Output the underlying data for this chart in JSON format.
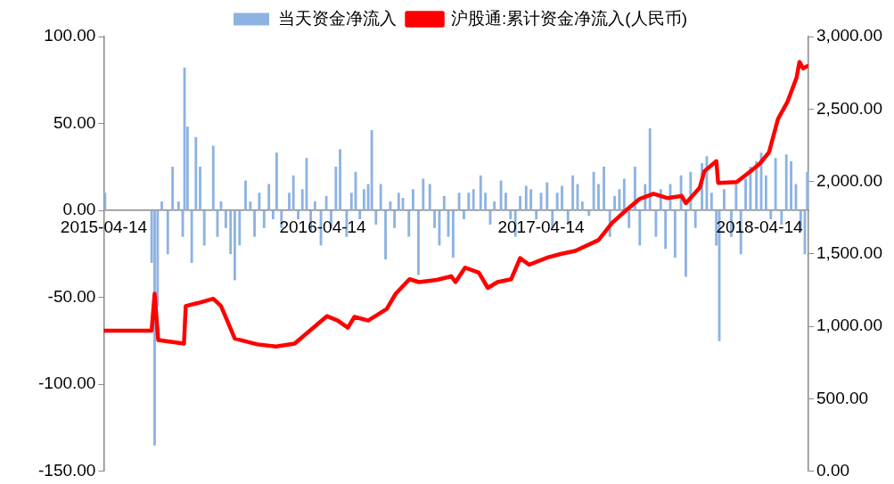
{
  "chart_data": {
    "type": "bar",
    "legend": "top",
    "grid": false,
    "xlim": [
      "2015-04-14",
      "2018-07-05"
    ],
    "xticks": [
      "2015-04-14",
      "2016-04-14",
      "2017-04-14",
      "2018-04-14"
    ],
    "ylim": [
      -150,
      100
    ],
    "yticks": [
      {
        "value": -150,
        "label": "-150.00"
      },
      {
        "value": -100,
        "label": "-100.00"
      },
      {
        "value": -50,
        "label": "-50.00"
      },
      {
        "value": 0,
        "label": "0.00"
      },
      {
        "value": 50,
        "label": "50.00"
      },
      {
        "value": 100,
        "label": "100.00"
      }
    ],
    "y2lim": [
      0,
      3000
    ],
    "y2ticks": [
      {
        "value": 0,
        "label": "0.00"
      },
      {
        "value": 500,
        "label": "500.00"
      },
      {
        "value": 1000,
        "label": "1,000.00"
      },
      {
        "value": 1500,
        "label": "1,500.00"
      },
      {
        "value": 2000,
        "label": "2,000.00"
      },
      {
        "value": 2500,
        "label": "2,500.00"
      },
      {
        "value": 3000,
        "label": "3,000.00"
      }
    ],
    "series": [
      {
        "name": "当天资金净流入",
        "color": "#8db3e2",
        "x": [
          "2015-04-16",
          "2015-07-03",
          "2015-07-08",
          "2015-07-13",
          "2015-07-20",
          "2015-07-30",
          "2015-08-07",
          "2015-08-17",
          "2015-08-24",
          "2015-08-27",
          "2015-09-01",
          "2015-09-08",
          "2015-09-15",
          "2015-09-22",
          "2015-09-29",
          "2015-10-14",
          "2015-10-21",
          "2015-10-27",
          "2015-11-04",
          "2015-11-12",
          "2015-11-19",
          "2015-11-27",
          "2015-12-07",
          "2015-12-15",
          "2015-12-22",
          "2015-12-30",
          "2016-01-07",
          "2016-01-15",
          "2016-01-22",
          "2016-01-28",
          "2016-02-05",
          "2016-02-18",
          "2016-02-25",
          "2016-03-04",
          "2016-03-11",
          "2016-03-18",
          "2016-03-25",
          "2016-04-01",
          "2016-04-11",
          "2016-04-20",
          "2016-04-28",
          "2016-05-06",
          "2016-05-13",
          "2016-05-24",
          "2016-06-01",
          "2016-06-08",
          "2016-06-15",
          "2016-06-22",
          "2016-06-29",
          "2016-07-05",
          "2016-07-12",
          "2016-07-20",
          "2016-07-28",
          "2016-08-05",
          "2016-08-12",
          "2016-08-19",
          "2016-08-26",
          "2016-09-05",
          "2016-09-12",
          "2016-09-21",
          "2016-09-29",
          "2016-10-10",
          "2016-10-18",
          "2016-10-26",
          "2016-11-03",
          "2016-11-10",
          "2016-11-18",
          "2016-11-28",
          "2016-12-06",
          "2016-12-14",
          "2016-12-22",
          "2017-01-03",
          "2017-01-11",
          "2017-01-19",
          "2017-01-26",
          "2017-02-06",
          "2017-02-14",
          "2017-02-22",
          "2017-03-02",
          "2017-03-10",
          "2017-03-20",
          "2017-03-28",
          "2017-04-06",
          "2017-04-14",
          "2017-04-24",
          "2017-05-03",
          "2017-05-11",
          "2017-05-19",
          "2017-05-29",
          "2017-06-06",
          "2017-06-14",
          "2017-06-22",
          "2017-07-03",
          "2017-07-11",
          "2017-07-19",
          "2017-07-28",
          "2017-08-07",
          "2017-08-15",
          "2017-08-23",
          "2017-08-31",
          "2017-09-08",
          "2017-09-18",
          "2017-09-26",
          "2017-10-05",
          "2017-10-13",
          "2017-10-23",
          "2017-10-31",
          "2017-11-08",
          "2017-11-16",
          "2017-11-24",
          "2017-12-04",
          "2017-12-12",
          "2017-12-20",
          "2017-12-28",
          "2018-01-08",
          "2018-01-16",
          "2018-01-24",
          "2018-02-01",
          "2018-02-06",
          "2018-02-14",
          "2018-02-26",
          "2018-03-06",
          "2018-03-14",
          "2018-03-22",
          "2018-03-30",
          "2018-04-09",
          "2018-04-17",
          "2018-04-25",
          "2018-05-03",
          "2018-05-11",
          "2018-05-21",
          "2018-05-29",
          "2018-06-06",
          "2018-06-14",
          "2018-06-22",
          "2018-06-29",
          "2018-07-03"
        ],
        "values": [
          10,
          -30,
          -135,
          -55,
          5,
          -25,
          25,
          5,
          -15,
          82,
          48,
          -30,
          42,
          25,
          -20,
          37,
          -15,
          5,
          -10,
          -25,
          -40,
          -20,
          17,
          5,
          -15,
          10,
          -10,
          15,
          -5,
          33,
          -10,
          10,
          20,
          -5,
          12,
          30,
          -12,
          5,
          -20,
          8,
          -10,
          25,
          35,
          -15,
          10,
          22,
          -5,
          12,
          15,
          46,
          -8,
          15,
          -28,
          5,
          -10,
          10,
          7,
          -15,
          12,
          -37,
          18,
          15,
          -10,
          -20,
          8,
          -15,
          -27,
          10,
          -5,
          10,
          12,
          20,
          10,
          -8,
          5,
          17,
          10,
          -5,
          -15,
          8,
          14,
          12,
          -5,
          10,
          16,
          -10,
          10,
          14,
          -8,
          20,
          15,
          5,
          -3,
          22,
          15,
          25,
          -15,
          8,
          12,
          18,
          -10,
          25,
          -20,
          15,
          47,
          -15,
          12,
          -22,
          15,
          -27,
          20,
          -38,
          22,
          -10,
          27,
          31,
          10,
          -20,
          -75,
          12,
          -15,
          15,
          -25,
          18,
          25,
          28,
          33,
          20,
          -5,
          30,
          -8,
          32,
          28,
          15,
          -12,
          -25,
          22
        ]
      },
      {
        "name": "沪股通:累计资金净流入(人民币)",
        "type": "line",
        "axis": "y2",
        "color": "#ff0000",
        "marker": "none",
        "x": [
          "2015-04-14",
          "2015-07-03",
          "2015-07-08",
          "2015-07-14",
          "2015-08-26",
          "2015-08-29",
          "2015-09-18",
          "2015-10-14",
          "2015-10-27",
          "2015-11-19",
          "2015-12-27",
          "2016-01-27",
          "2016-02-27",
          "2016-03-05",
          "2016-04-21",
          "2016-05-09",
          "2016-05-26",
          "2016-06-06",
          "2016-06-29",
          "2016-07-30",
          "2016-08-14",
          "2016-09-06",
          "2016-09-22",
          "2016-10-22",
          "2016-11-15",
          "2016-11-22",
          "2016-12-08",
          "2016-12-31",
          "2017-01-15",
          "2017-01-31",
          "2017-02-23",
          "2017-03-10",
          "2017-03-25",
          "2017-04-25",
          "2017-05-18",
          "2017-06-10",
          "2017-07-19",
          "2017-08-11",
          "2017-09-03",
          "2017-09-26",
          "2017-10-19",
          "2017-11-11",
          "2017-12-05",
          "2017-12-12",
          "2018-01-04",
          "2018-01-12",
          "2018-02-01",
          "2018-02-04",
          "2018-03-07",
          "2018-03-30",
          "2018-04-14",
          "2018-04-30",
          "2018-05-15",
          "2018-05-31",
          "2018-06-15",
          "2018-06-20",
          "2018-06-26",
          "2018-07-03"
        ],
        "values": [
          970,
          970,
          1225,
          905,
          880,
          1140,
          1160,
          1190,
          1140,
          915,
          875,
          860,
          880,
          905,
          1070,
          1040,
          990,
          1065,
          1040,
          1120,
          1225,
          1325,
          1305,
          1320,
          1345,
          1305,
          1405,
          1370,
          1265,
          1305,
          1325,
          1470,
          1425,
          1475,
          1500,
          1520,
          1595,
          1715,
          1800,
          1880,
          1915,
          1885,
          1900,
          1850,
          1955,
          2070,
          2140,
          1990,
          1995,
          2070,
          2120,
          2200,
          2430,
          2550,
          2715,
          2825,
          2780,
          2795
        ]
      }
    ]
  }
}
